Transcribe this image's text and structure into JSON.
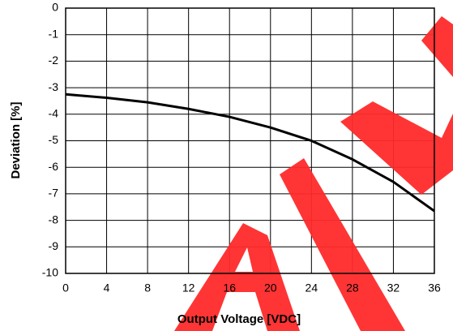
{
  "chart_data": {
    "type": "line",
    "x_label": "Output Voltage [VDC]",
    "y_label": "Deviation [%]",
    "x": [
      0,
      4,
      8,
      12,
      16,
      20,
      24,
      28,
      32,
      36
    ],
    "series": [
      {
        "color": "#000000",
        "values": [
          -3.25,
          -3.38,
          -3.55,
          -3.8,
          -4.1,
          -4.5,
          -5.0,
          -5.7,
          -6.55,
          -7.65
        ]
      }
    ],
    "xlim": [
      0,
      36
    ],
    "xticks": [
      0,
      4,
      8,
      12,
      16,
      20,
      24,
      28,
      32,
      36
    ],
    "ylim": [
      -10,
      0
    ],
    "yticks": [
      0,
      -1,
      -2,
      -3,
      -4,
      -5,
      -6,
      -7,
      -8,
      -9,
      -10
    ],
    "grid": true
  }
}
